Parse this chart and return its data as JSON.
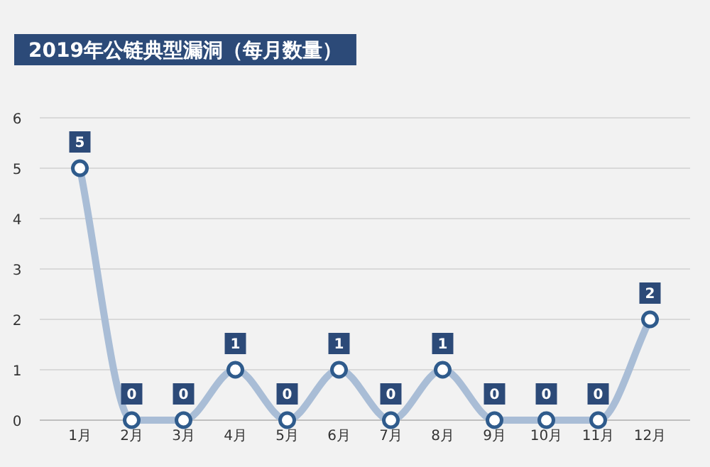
{
  "chart_data": {
    "type": "line",
    "title": "2019年公链典型漏洞（每月数量）",
    "categories": [
      "1月",
      "2月",
      "3月",
      "4月",
      "5月",
      "6月",
      "7月",
      "8月",
      "9月",
      "10月",
      "11月",
      "12月"
    ],
    "series": [
      {
        "color": "#a9bdd6",
        "values": [
          5,
          0,
          0,
          1,
          0,
          1,
          0,
          1,
          0,
          0,
          0,
          2
        ]
      }
    ],
    "ylim": [
      0,
      6
    ],
    "yticks": [
      0,
      1,
      2,
      3,
      4,
      5,
      6
    ],
    "grid": "y",
    "marker": "circle",
    "data_labels": true
  }
}
